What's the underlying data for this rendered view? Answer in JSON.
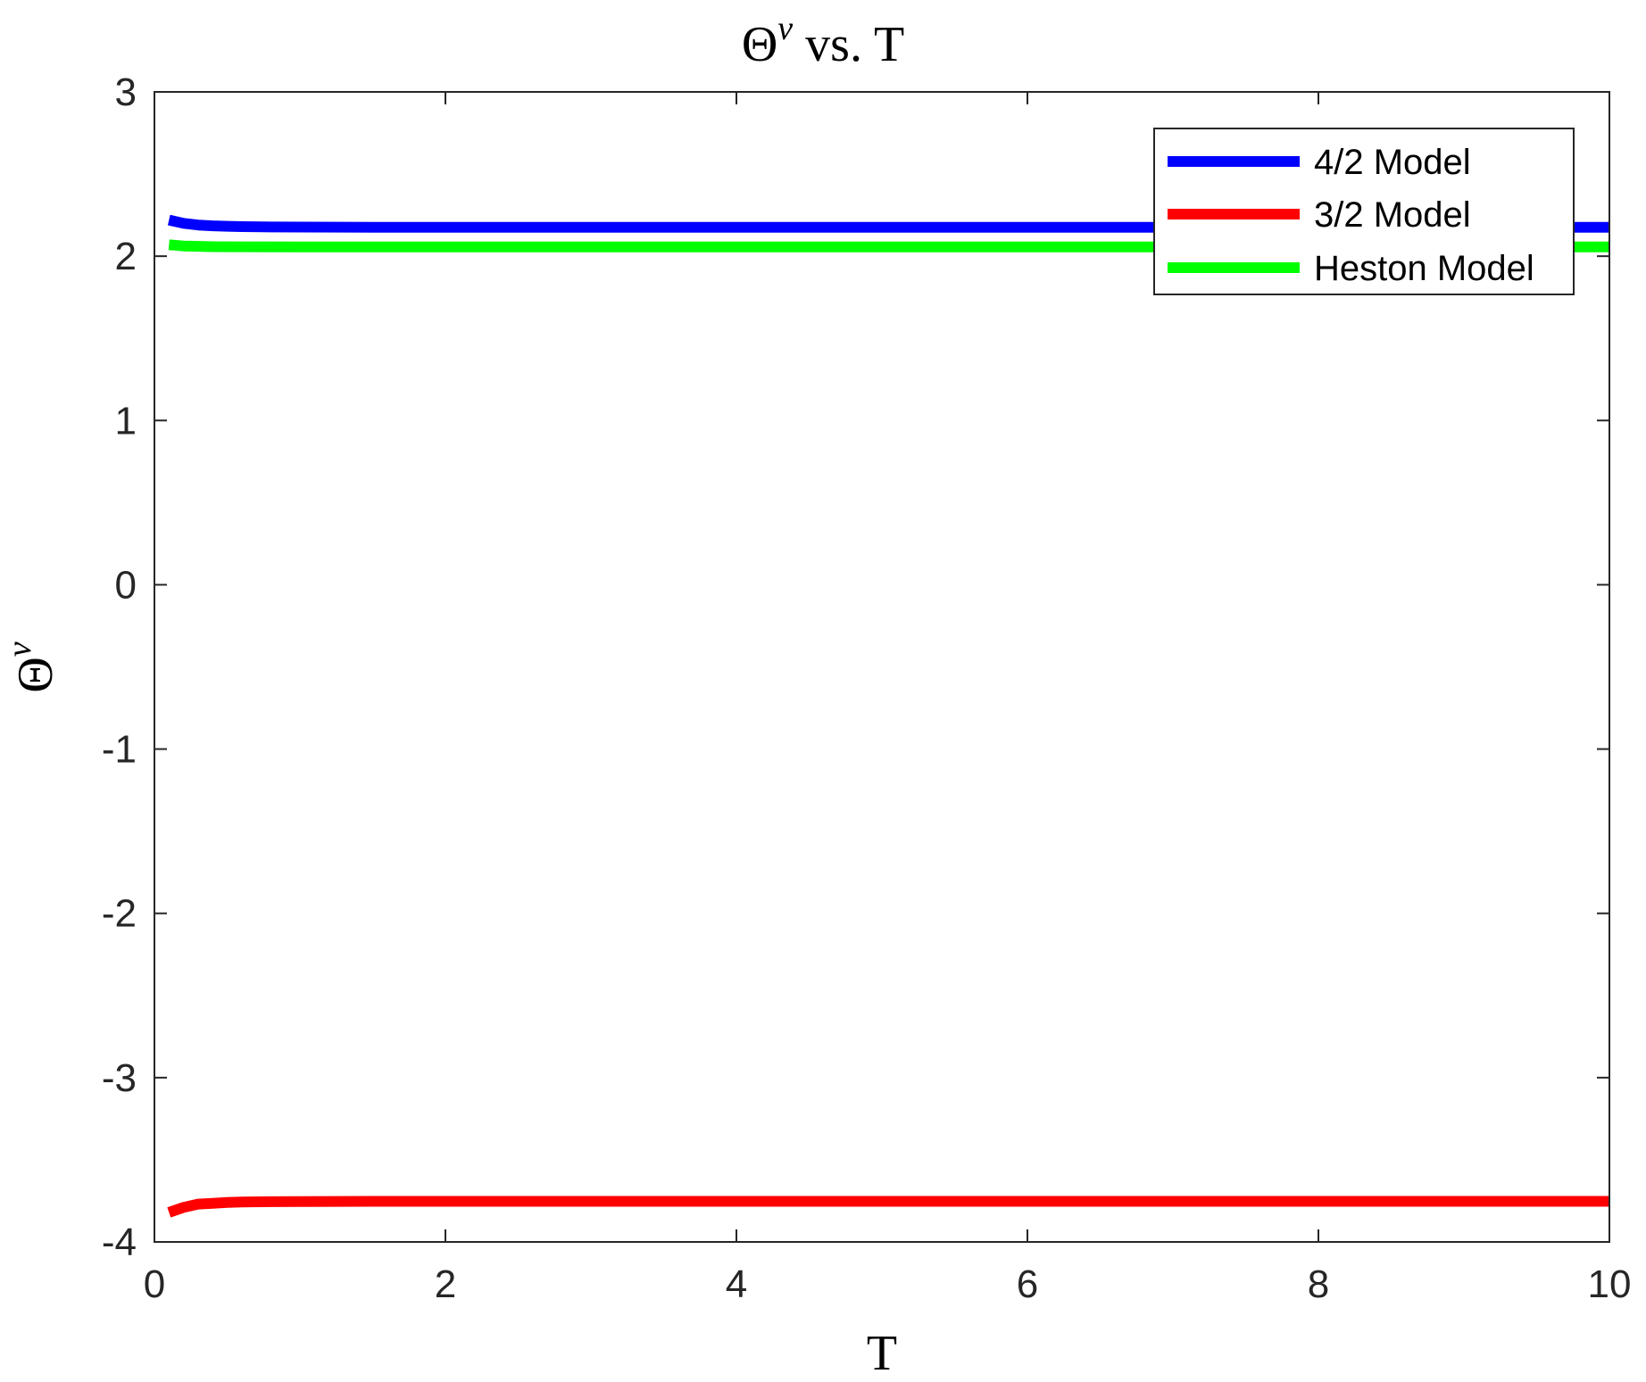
{
  "chart_data": {
    "type": "line",
    "title": {
      "base": "Θ",
      "sup": "v",
      "rest": " vs. T"
    },
    "xlabel": "T",
    "ylabel": {
      "base": "Θ",
      "sup": "v"
    },
    "xlim": [
      0,
      10
    ],
    "ylim": [
      -4,
      3
    ],
    "xticks": [
      0,
      2,
      4,
      6,
      8,
      10
    ],
    "xtick_labels": [
      "0",
      "2",
      "4",
      "6",
      "8",
      "10"
    ],
    "yticks": [
      -4,
      -3,
      -2,
      -1,
      0,
      1,
      2,
      3
    ],
    "ytick_labels": [
      "-4",
      "-3",
      "-2",
      "-1",
      "0",
      "1",
      "2",
      "3"
    ],
    "grid": false,
    "legend_position": "top-right",
    "series": [
      {
        "name": "4/2 Model",
        "color": "#0000ff",
        "x": [
          0.1,
          0.2,
          0.3,
          0.4,
          0.5,
          0.6,
          0.8,
          1.0,
          1.5,
          2,
          3,
          4,
          5,
          6,
          7,
          8,
          9,
          10
        ],
        "values": [
          2.22,
          2.2,
          2.19,
          2.185,
          2.182,
          2.18,
          2.178,
          2.177,
          2.176,
          2.176,
          2.176,
          2.176,
          2.176,
          2.176,
          2.176,
          2.176,
          2.176,
          2.176
        ]
      },
      {
        "name": "3/2 Model",
        "color": "#ff0000",
        "x": [
          0.1,
          0.2,
          0.3,
          0.4,
          0.5,
          0.6,
          0.8,
          1.0,
          1.5,
          2,
          3,
          4,
          5,
          6,
          7,
          8,
          9,
          10
        ],
        "values": [
          -3.82,
          -3.79,
          -3.77,
          -3.765,
          -3.76,
          -3.757,
          -3.755,
          -3.754,
          -3.753,
          -3.753,
          -3.753,
          -3.753,
          -3.753,
          -3.753,
          -3.753,
          -3.753,
          -3.753,
          -3.753
        ]
      },
      {
        "name": "Heston Model",
        "color": "#00ff00",
        "x": [
          0.1,
          0.2,
          0.3,
          0.4,
          0.5,
          1.0,
          2,
          3,
          4,
          5,
          6,
          7,
          8,
          9,
          10
        ],
        "values": [
          2.07,
          2.062,
          2.06,
          2.058,
          2.057,
          2.056,
          2.056,
          2.056,
          2.056,
          2.056,
          2.056,
          2.056,
          2.056,
          2.056,
          2.056
        ]
      }
    ]
  }
}
